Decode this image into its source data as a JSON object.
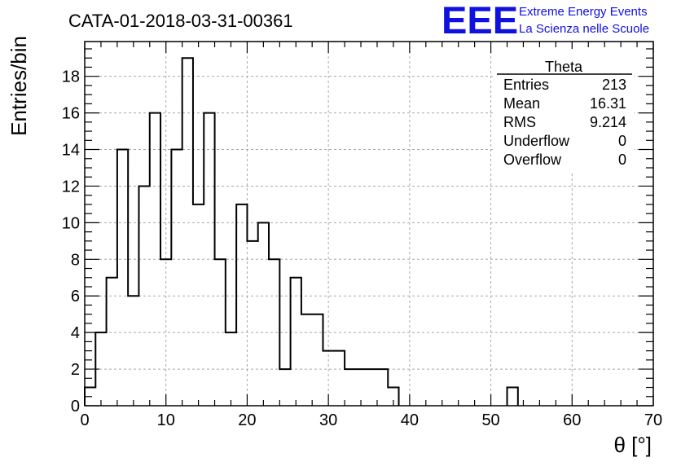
{
  "title": "CATA-01-2018-03-31-00361",
  "logo": {
    "mark": "EEE",
    "line1": "Extreme Energy Events",
    "line2": "La Scienza nelle Scuole",
    "color": "#1010e0"
  },
  "stats": {
    "name": "Theta",
    "rows": [
      {
        "label": "Entries",
        "value": "213"
      },
      {
        "label": "Mean",
        "value": "16.31"
      },
      {
        "label": "RMS",
        "value": "9.214"
      },
      {
        "label": "Underflow",
        "value": "0"
      },
      {
        "label": "Overflow",
        "value": "0"
      }
    ]
  },
  "chart_data": {
    "type": "histogram",
    "xlabel": "θ [°]",
    "ylabel": "Entries/bin",
    "xlim": [
      0,
      70
    ],
    "ylim": [
      0,
      19.9
    ],
    "bin_width": 1.333,
    "grid": true,
    "x_ticks": [
      0,
      10,
      20,
      30,
      40,
      50,
      60,
      70
    ],
    "y_ticks": [
      0,
      2,
      4,
      6,
      8,
      10,
      12,
      14,
      16,
      18
    ],
    "bins": [
      {
        "x0": 0.0,
        "count": 1
      },
      {
        "x0": 1.33,
        "count": 4
      },
      {
        "x0": 2.67,
        "count": 7
      },
      {
        "x0": 4.0,
        "count": 14
      },
      {
        "x0": 5.33,
        "count": 6
      },
      {
        "x0": 6.67,
        "count": 12
      },
      {
        "x0": 8.0,
        "count": 16
      },
      {
        "x0": 9.33,
        "count": 8
      },
      {
        "x0": 10.67,
        "count": 14
      },
      {
        "x0": 12.0,
        "count": 19
      },
      {
        "x0": 13.33,
        "count": 11
      },
      {
        "x0": 14.67,
        "count": 16
      },
      {
        "x0": 16.0,
        "count": 8
      },
      {
        "x0": 17.33,
        "count": 4
      },
      {
        "x0": 18.67,
        "count": 11
      },
      {
        "x0": 20.0,
        "count": 9
      },
      {
        "x0": 21.33,
        "count": 10
      },
      {
        "x0": 22.67,
        "count": 8
      },
      {
        "x0": 24.0,
        "count": 2
      },
      {
        "x0": 25.33,
        "count": 7
      },
      {
        "x0": 26.67,
        "count": 5
      },
      {
        "x0": 28.0,
        "count": 5
      },
      {
        "x0": 29.33,
        "count": 3
      },
      {
        "x0": 30.67,
        "count": 3
      },
      {
        "x0": 32.0,
        "count": 2
      },
      {
        "x0": 33.33,
        "count": 2
      },
      {
        "x0": 34.67,
        "count": 2
      },
      {
        "x0": 36.0,
        "count": 2
      },
      {
        "x0": 37.33,
        "count": 1
      },
      {
        "x0": 52.0,
        "count": 1
      }
    ]
  }
}
